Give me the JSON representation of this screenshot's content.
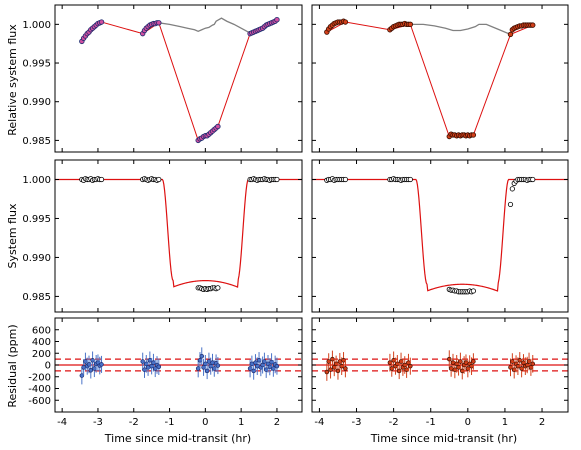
{
  "figure": {
    "xlabel": "Time since mid-transit (hr)",
    "xticks": [
      "-4",
      "-3",
      "-2",
      "-1",
      "0",
      "1",
      "2"
    ],
    "row_ylabels": [
      "Relative system flux",
      "System flux",
      "Residual (ppm)"
    ],
    "row_yticks": [
      [
        "0.985",
        "0.990",
        "0.995",
        "1.000"
      ],
      [
        "0.985",
        "0.990",
        "0.995",
        "1.000"
      ],
      [
        "-600",
        "-400",
        "-200",
        "0",
        "200",
        "400",
        "600"
      ]
    ]
  },
  "colors": {
    "left_points": "#4a73c8",
    "left_points_edge": "#1c2a6e",
    "left_points_core": "#d04fa0",
    "right_points": "#d2401a",
    "right_points_edge": "#3a0d00",
    "model_line": "#dd1111",
    "systematics_line": "#808080",
    "white_points": "#ffffff"
  },
  "chart_data": [
    {
      "type": "scatter",
      "panel": "raw-flux-left",
      "xlim": [
        -4.2,
        2.7
      ],
      "ylim": [
        0.9835,
        1.0025
      ],
      "ylabel": "Relative system flux",
      "series": [
        {
          "x": [
            -3.45,
            -3.4,
            -3.35,
            -3.3,
            -3.25,
            -3.2,
            -3.15,
            -3.1,
            -3.05,
            -3.0,
            -2.95,
            -2.9
          ],
          "y": [
            0.9978,
            0.9982,
            0.9985,
            0.9988,
            0.999,
            0.9993,
            0.9995,
            0.9997,
            0.9999,
            1.0001,
            1.0002,
            1.0003
          ]
        },
        {
          "x": [
            -1.75,
            -1.7,
            -1.65,
            -1.6,
            -1.55,
            -1.5,
            -1.45,
            -1.4,
            -1.35,
            -1.3
          ],
          "y": [
            0.9988,
            0.9992,
            0.9995,
            0.9997,
            0.9999,
            1.0,
            1.0001,
            1.0001,
            1.0002,
            1.0002
          ]
        },
        {
          "x": [
            -0.2,
            -0.15,
            -0.1,
            -0.05,
            0.0,
            0.05,
            0.1,
            0.15,
            0.2,
            0.25,
            0.3,
            0.35
          ],
          "y": [
            0.985,
            0.9852,
            0.9853,
            0.9855,
            0.9856,
            0.9856,
            0.9858,
            0.986,
            0.9862,
            0.9864,
            0.9866,
            0.9868
          ]
        },
        {
          "x": [
            1.25,
            1.3,
            1.35,
            1.4,
            1.45,
            1.5,
            1.55,
            1.6,
            1.65,
            1.7,
            1.75,
            1.8,
            1.85,
            1.9,
            1.95,
            2.0
          ],
          "y": [
            0.9988,
            0.9989,
            0.999,
            0.9991,
            0.9992,
            0.9993,
            0.9994,
            0.9995,
            0.9997,
            0.9999,
            1.0,
            1.0001,
            1.0002,
            1.0003,
            1.0004,
            1.0006
          ]
        }
      ],
      "fit_line": {
        "x": [
          -3.45,
          -2.9,
          -1.75,
          -1.3,
          -0.2,
          0.35,
          1.25,
          2.0
        ],
        "y": [
          0.9978,
          1.0003,
          0.9988,
          1.0002,
          0.985,
          0.9868,
          0.9988,
          1.0006
        ]
      },
      "systematics_line": {
        "x": [
          -1.3,
          -1.0,
          -0.7,
          -0.5,
          -0.3,
          -0.2,
          -0.1,
          0.0,
          0.1,
          0.2,
          0.25,
          0.3,
          0.45,
          0.6,
          0.8,
          1.0,
          1.2
        ],
        "y": [
          1.0002,
          1.0,
          0.9997,
          0.9995,
          0.9993,
          0.9991,
          0.9993,
          0.9995,
          0.9996,
          0.9999,
          1.0,
          1.0004,
          1.0008,
          1.0004,
          1.0,
          0.9995,
          0.999
        ]
      }
    },
    {
      "type": "scatter",
      "panel": "raw-flux-right",
      "xlim": [
        -4.2,
        2.7
      ],
      "ylim": [
        0.9835,
        1.0025
      ],
      "series": [
        {
          "x": [
            -3.8,
            -3.75,
            -3.7,
            -3.65,
            -3.6,
            -3.55,
            -3.5,
            -3.45,
            -3.4,
            -3.35,
            -3.3
          ],
          "y": [
            0.999,
            0.9994,
            0.9997,
            0.9999,
            1.0001,
            1.0002,
            1.0003,
            1.0003,
            1.0003,
            1.0004,
            1.0003
          ]
        },
        {
          "x": [
            -2.1,
            -2.05,
            -2.0,
            -1.95,
            -1.9,
            -1.85,
            -1.8,
            -1.75,
            -1.7,
            -1.65,
            -1.6,
            -1.55
          ],
          "y": [
            0.9993,
            0.9995,
            0.9997,
            0.9998,
            0.9999,
            1.0,
            1.0,
            1.0,
            1.0001,
            1.0,
            1.0,
            1.0
          ]
        },
        {
          "x": [
            -0.5,
            -0.45,
            -0.4,
            -0.35,
            -0.3,
            -0.25,
            -0.2,
            -0.15,
            -0.1,
            -0.05,
            0.0,
            0.05,
            0.1,
            0.15
          ],
          "y": [
            0.9855,
            0.9858,
            0.9857,
            0.9857,
            0.9856,
            0.9857,
            0.9856,
            0.9857,
            0.9857,
            0.9856,
            0.9857,
            0.9856,
            0.9857,
            0.9857
          ]
        },
        {
          "x": [
            1.15,
            1.2,
            1.25,
            1.3,
            1.35,
            1.4,
            1.45,
            1.5,
            1.55,
            1.6,
            1.65,
            1.7,
            1.75
          ],
          "y": [
            0.9987,
            0.9993,
            0.9995,
            0.9996,
            0.9997,
            0.9998,
            0.9998,
            0.9999,
            0.9999,
            0.9999,
            0.9999,
            0.9999,
            0.9999
          ]
        }
      ],
      "fit_line": {
        "x": [
          -3.8,
          -3.3,
          -2.1,
          -1.55,
          -0.5,
          0.15,
          1.15,
          1.75
        ],
        "y": [
          0.999,
          1.0003,
          0.9993,
          1.0,
          0.9855,
          0.9857,
          0.9987,
          0.9999
        ]
      },
      "systematics_line": {
        "x": [
          -1.55,
          -1.2,
          -0.9,
          -0.6,
          -0.4,
          -0.2,
          0.0,
          0.2,
          0.3,
          0.5,
          0.8,
          1.15
        ],
        "y": [
          1.0,
          1.0,
          0.9998,
          0.9995,
          0.9992,
          0.9992,
          0.9994,
          0.9997,
          1.0,
          1.0,
          0.9994,
          0.9987
        ]
      }
    },
    {
      "type": "scatter",
      "panel": "corrected-flux-left",
      "xlim": [
        -4.2,
        2.7
      ],
      "ylim": [
        0.983,
        1.0025
      ],
      "ylabel": "System flux",
      "series": [
        {
          "x": [
            -3.45,
            -3.4,
            -3.35,
            -3.3,
            -3.25,
            -3.2,
            -3.15,
            -3.1,
            -3.05,
            -3.0,
            -2.95,
            -2.9
          ],
          "y": [
            1.0,
            0.9999,
            1.0001,
            1.0,
            1.0,
            1.0001,
            0.9999,
            1.0,
            1.0,
            1.0001,
            1.0,
            1.0
          ]
        },
        {
          "x": [
            -1.75,
            -1.7,
            -1.65,
            -1.6,
            -1.55,
            -1.5,
            -1.45,
            -1.4,
            -1.35,
            -1.3
          ],
          "y": [
            1.0,
            1.0001,
            1.0,
            0.9999,
            1.0,
            1.0001,
            1.0,
            1.0,
            0.9999,
            1.0
          ]
        },
        {
          "x": [
            -0.2,
            -0.15,
            -0.1,
            -0.05,
            0.0,
            0.05,
            0.1,
            0.15,
            0.2,
            0.25,
            0.3,
            0.35
          ],
          "y": [
            0.9861,
            0.9861,
            0.986,
            0.9859,
            0.986,
            0.9859,
            0.986,
            0.986,
            0.9861,
            0.9861,
            0.986,
            0.9861
          ]
        },
        {
          "x": [
            1.25,
            1.3,
            1.35,
            1.4,
            1.45,
            1.5,
            1.55,
            1.6,
            1.65,
            1.7,
            1.75,
            1.8,
            1.85,
            1.9,
            1.95,
            2.0
          ],
          "y": [
            1.0,
            1.0,
            1.0001,
            1.0,
            0.9999,
            1.0,
            1.0,
            1.0,
            1.0001,
            1.0,
            1.0,
            0.9999,
            1.0,
            1.0,
            1.0,
            1.0
          ]
        }
      ],
      "model": {
        "t0": 0.0,
        "depth": 0.0138,
        "half_duration": 1.2,
        "ingress": 0.3
      }
    },
    {
      "type": "scatter",
      "panel": "corrected-flux-right",
      "xlim": [
        -4.2,
        2.7
      ],
      "ylim": [
        0.983,
        1.0025
      ],
      "series": [
        {
          "x": [
            -3.8,
            -3.75,
            -3.7,
            -3.65,
            -3.6,
            -3.55,
            -3.5,
            -3.45,
            -3.4,
            -3.35,
            -3.3
          ],
          "y": [
            0.9999,
            1.0,
            1.0,
            1.0001,
            0.9999,
            1.0,
            1.0,
            1.0,
            1.0,
            1.0,
            1.0
          ]
        },
        {
          "x": [
            -2.1,
            -2.05,
            -2.0,
            -1.95,
            -1.9,
            -1.85,
            -1.8,
            -1.75,
            -1.7,
            -1.65,
            -1.6,
            -1.55
          ],
          "y": [
            1.0,
            1.0,
            1.0001,
            1.0,
            1.0,
            1.0,
            0.9999,
            1.0,
            1.0,
            1.0,
            1.0,
            1.0
          ]
        },
        {
          "x": [
            -0.5,
            -0.45,
            -0.4,
            -0.35,
            -0.3,
            -0.25,
            -0.2,
            -0.15,
            -0.1,
            -0.05,
            0.0,
            0.05,
            0.1,
            0.15
          ],
          "y": [
            0.9859,
            0.9858,
            0.9858,
            0.9857,
            0.9857,
            0.9856,
            0.9856,
            0.9856,
            0.9856,
            0.9856,
            0.9856,
            0.9857,
            0.9856,
            0.9857
          ]
        },
        {
          "x": [
            1.15,
            1.2,
            1.25,
            1.3,
            1.35,
            1.4,
            1.45,
            1.5,
            1.55,
            1.6,
            1.65,
            1.7,
            1.75
          ],
          "y": [
            0.9968,
            0.9988,
            0.9995,
            0.9998,
            1.0,
            1.0,
            1.0,
            1.0,
            1.0,
            0.9999,
            1.0,
            1.0,
            1.0
          ]
        }
      ],
      "model": {
        "t0": -0.15,
        "depth": 0.0143,
        "half_duration": 1.25,
        "ingress": 0.3
      }
    },
    {
      "type": "scatter",
      "panel": "residual-left",
      "xlim": [
        -4.2,
        2.7
      ],
      "ylim": [
        -800,
        800
      ],
      "ylabel": "Residual (ppm)",
      "hlines": [
        0,
        100,
        -100
      ],
      "series": [
        {
          "x": [
            -3.45,
            -3.4,
            -3.35,
            -3.3,
            -3.25,
            -3.2,
            -3.15,
            -3.1,
            -3.05,
            -3.0,
            -2.95,
            -2.9
          ],
          "y": [
            -180,
            -40,
            60,
            -20,
            10,
            -90,
            80,
            -60,
            20,
            40,
            -10,
            10
          ],
          "err": [
            150,
            140,
            150,
            145,
            150,
            140,
            150,
            145,
            150,
            140,
            150,
            145
          ]
        },
        {
          "x": [
            -1.75,
            -1.7,
            -1.65,
            -1.6,
            -1.55,
            -1.5,
            -1.45,
            -1.4,
            -1.35,
            -1.3
          ],
          "y": [
            60,
            -80,
            20,
            -40,
            80,
            -20,
            40,
            -60,
            0,
            -30
          ],
          "err": [
            150,
            140,
            150,
            145,
            150,
            140,
            150,
            145,
            150,
            140
          ]
        },
        {
          "x": [
            -0.2,
            -0.15,
            -0.1,
            -0.05,
            0.0,
            0.05,
            0.1,
            0.15,
            0.2,
            0.25,
            0.3,
            0.35
          ],
          "y": [
            -60,
            80,
            150,
            -40,
            20,
            -100,
            60,
            -20,
            40,
            -60,
            30,
            -10
          ],
          "err": [
            150,
            140,
            150,
            145,
            150,
            140,
            150,
            145,
            150,
            140,
            150,
            145
          ]
        },
        {
          "x": [
            1.25,
            1.3,
            1.35,
            1.4,
            1.45,
            1.5,
            1.55,
            1.6,
            1.65,
            1.7,
            1.75,
            1.8,
            1.85,
            1.9,
            1.95,
            2.0
          ],
          "y": [
            -60,
            20,
            -100,
            40,
            -20,
            80,
            -40,
            0,
            60,
            -80,
            20,
            -30,
            50,
            -60,
            10,
            -20
          ],
          "err": [
            150,
            140,
            150,
            145,
            150,
            140,
            150,
            145,
            150,
            140,
            150,
            145,
            150,
            140,
            150,
            145
          ]
        }
      ]
    },
    {
      "type": "scatter",
      "panel": "residual-right",
      "xlim": [
        -4.2,
        2.7
      ],
      "ylim": [
        -800,
        800
      ],
      "hlines": [
        0,
        100,
        -100
      ],
      "series": [
        {
          "x": [
            -3.8,
            -3.75,
            -3.7,
            -3.65,
            -3.6,
            -3.55,
            -3.5,
            -3.45,
            -3.4,
            -3.35,
            -3.3
          ],
          "y": [
            -120,
            60,
            -80,
            100,
            -40,
            20,
            -100,
            60,
            -20,
            80,
            -60
          ],
          "err": [
            150,
            140,
            150,
            145,
            150,
            140,
            150,
            145,
            150,
            140,
            150
          ]
        },
        {
          "x": [
            -2.1,
            -2.05,
            -2.0,
            -1.95,
            -1.9,
            -1.85,
            -1.8,
            -1.75,
            -1.7,
            -1.65,
            -1.6,
            -1.55
          ],
          "y": [
            40,
            -60,
            80,
            -20,
            20,
            -100,
            60,
            -40,
            0,
            -80,
            40,
            -20
          ],
          "err": [
            150,
            140,
            150,
            145,
            150,
            140,
            150,
            145,
            150,
            140,
            150,
            145
          ]
        },
        {
          "x": [
            -0.5,
            -0.45,
            -0.4,
            -0.35,
            -0.3,
            -0.25,
            -0.2,
            -0.15,
            -0.1,
            -0.05,
            0.0,
            0.05,
            0.1,
            0.15
          ],
          "y": [
            100,
            -60,
            40,
            -80,
            20,
            -40,
            60,
            -100,
            0,
            40,
            -60,
            20,
            -20,
            60
          ],
          "err": [
            150,
            140,
            150,
            145,
            150,
            140,
            150,
            145,
            150,
            140,
            150,
            145,
            150,
            140
          ]
        },
        {
          "x": [
            1.15,
            1.2,
            1.25,
            1.3,
            1.35,
            1.4,
            1.45,
            1.5,
            1.55,
            1.6,
            1.65,
            1.7,
            1.75
          ],
          "y": [
            -40,
            60,
            -80,
            20,
            -20,
            80,
            -60,
            40,
            -20,
            0,
            60,
            -40,
            20
          ],
          "err": [
            150,
            140,
            150,
            145,
            150,
            140,
            150,
            145,
            150,
            140,
            150,
            145,
            150
          ]
        }
      ]
    }
  ]
}
